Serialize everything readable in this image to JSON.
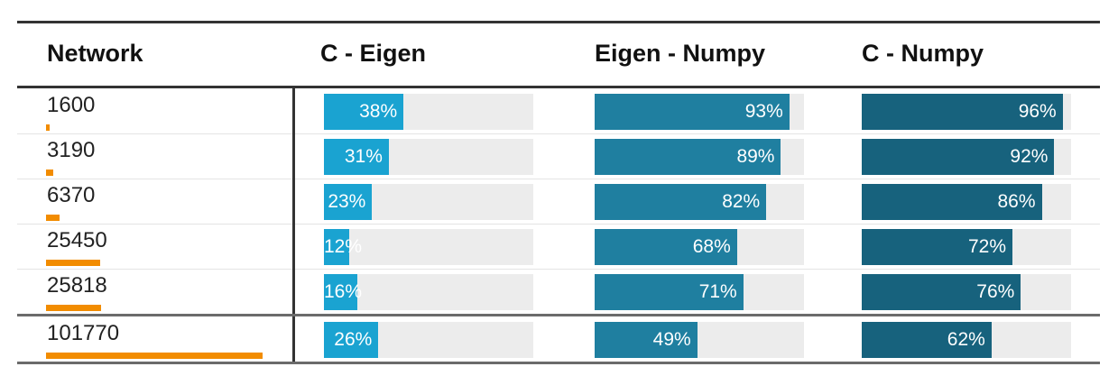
{
  "table": {
    "headers": [
      "Network",
      "C - Eigen",
      "Eigen - Numpy",
      "C - Numpy"
    ],
    "colors": {
      "c_eigen": "#1aa3d1",
      "eigen_numpy": "#1f7fa0",
      "c_numpy": "#17627d",
      "network_bar": "#f28c00",
      "track": "#ececec"
    }
  },
  "chart_data": {
    "type": "table",
    "columns": [
      "Network",
      "C - Eigen",
      "Eigen - Numpy",
      "C - Numpy"
    ],
    "rows": [
      {
        "network": "1600",
        "c_eigen": 38,
        "eigen_numpy": 93,
        "c_numpy": 96,
        "c_eigen_label": "38%",
        "eigen_numpy_label": "93%",
        "c_numpy_label": "96%"
      },
      {
        "network": "3190",
        "c_eigen": 31,
        "eigen_numpy": 89,
        "c_numpy": 92,
        "c_eigen_label": "31%",
        "eigen_numpy_label": "89%",
        "c_numpy_label": "92%"
      },
      {
        "network": "6370",
        "c_eigen": 23,
        "eigen_numpy": 82,
        "c_numpy": 86,
        "c_eigen_label": "23%",
        "eigen_numpy_label": "82%",
        "c_numpy_label": "86%"
      },
      {
        "network": "25450",
        "c_eigen": 12,
        "eigen_numpy": 68,
        "c_numpy": 72,
        "c_eigen_label": "12%",
        "eigen_numpy_label": "68%",
        "c_numpy_label": "72%"
      },
      {
        "network": "25818",
        "c_eigen": 16,
        "eigen_numpy": 71,
        "c_numpy": 76,
        "c_eigen_label": "16%",
        "eigen_numpy_label": "71%",
        "c_numpy_label": "76%"
      },
      {
        "network": "101770",
        "c_eigen": 26,
        "eigen_numpy": 49,
        "c_numpy": 62,
        "c_eigen_label": "26%",
        "eigen_numpy_label": "49%",
        "c_numpy_label": "62%"
      }
    ],
    "network_sizes": [
      1600,
      3190,
      6370,
      25450,
      25818,
      101770
    ],
    "percent_range": [
      0,
      100
    ]
  }
}
